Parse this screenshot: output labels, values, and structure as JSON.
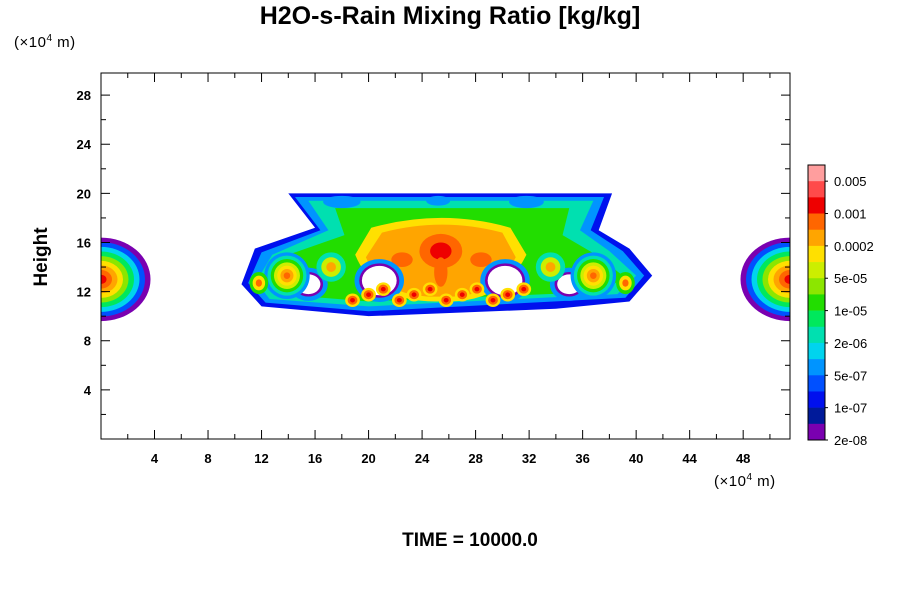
{
  "chart_data": {
    "type": "heatmap",
    "title": "H2O-s-Rain Mixing Ratio [kg/kg]",
    "ylabel": "Height",
    "x_unit_prefix": "(×10",
    "x_unit_exp": "4",
    "x_unit_suffix": " m)",
    "y_unit_prefix": "(×10",
    "y_unit_exp": "4",
    "y_unit_suffix": " m)",
    "xlim": [
      0,
      51.5
    ],
    "ylim": [
      0,
      29.8
    ],
    "x_ticks": [
      "4",
      "8",
      "12",
      "16",
      "20",
      "24",
      "28",
      "32",
      "36",
      "40",
      "44",
      "48"
    ],
    "x_tick_values": [
      4,
      8,
      12,
      16,
      20,
      24,
      28,
      32,
      36,
      40,
      44,
      48
    ],
    "y_ticks": [
      "4",
      "8",
      "12",
      "16",
      "20",
      "24",
      "28"
    ],
    "y_tick_values": [
      4,
      8,
      12,
      16,
      20,
      24,
      28
    ],
    "colorbar_labels": [
      "0.005",
      "0.001",
      "0.0002",
      "5e-05",
      "1e-05",
      "2e-06",
      "5e-07",
      "1e-07",
      "2e-08"
    ],
    "colorbar_colors": [
      "#ff9e9e",
      "#ff4a4a",
      "#ee0000",
      "#ff6600",
      "#ffa500",
      "#ffe000",
      "#ccee00",
      "#8ce600",
      "#22dd00",
      "#00e85c",
      "#00e0b0",
      "#00d4ee",
      "#0094ff",
      "#0050ff",
      "#0010ee",
      "#001a9a",
      "#7a00b0"
    ],
    "footer": "TIME = 10000.0"
  }
}
